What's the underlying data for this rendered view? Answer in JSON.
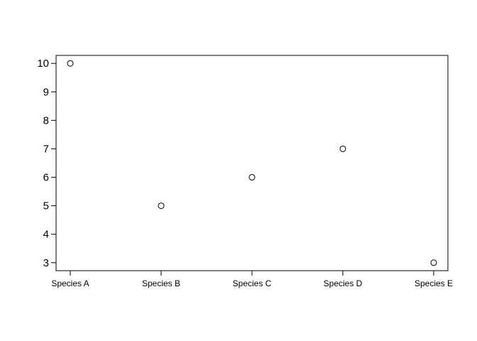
{
  "chart_data": {
    "type": "scatter",
    "title": "",
    "xlabel": "",
    "ylabel": "",
    "categories": [
      "Species A",
      "Species B",
      "Species C",
      "Species D",
      "Species E"
    ],
    "values": [
      10,
      5,
      6,
      7,
      3
    ],
    "ylim": [
      2.72,
      10.28
    ],
    "yticks": [
      3,
      4,
      5,
      6,
      7,
      8,
      9,
      10
    ],
    "grid": false,
    "marker": "open-circle",
    "colors": {
      "point": "#000000",
      "axis": "#000000",
      "background": "#ffffff"
    }
  }
}
